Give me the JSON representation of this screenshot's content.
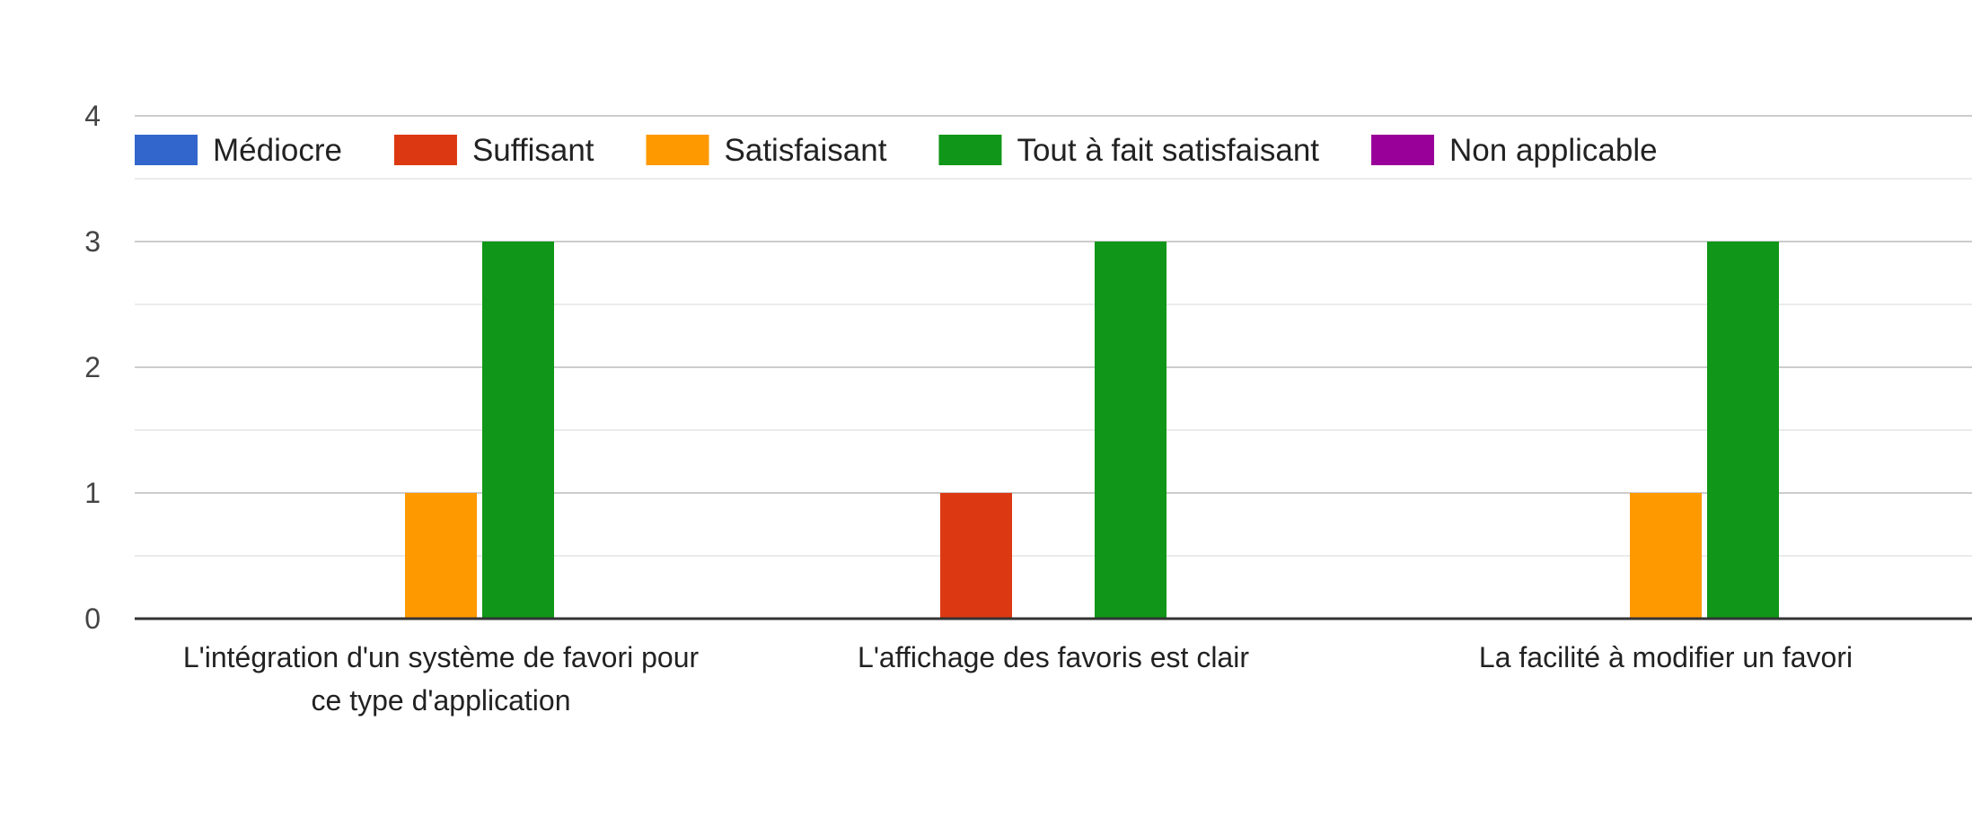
{
  "chart_data": {
    "type": "bar",
    "title": "",
    "xlabel": "",
    "ylabel": "",
    "ylim": [
      0,
      4
    ],
    "yticks": [
      0,
      1,
      2,
      3,
      4
    ],
    "grid": true,
    "legend_position": "top",
    "categories": [
      [
        "L'intégration d'un système de favori pour",
        "ce type d'application"
      ],
      [
        "L'affichage des favoris est clair"
      ],
      [
        "La facilité à modifier un favori"
      ]
    ],
    "series": [
      {
        "name": "Médiocre",
        "color": "#3366cc",
        "values": [
          0,
          0,
          0
        ]
      },
      {
        "name": "Suffisant",
        "color": "#dc3912",
        "values": [
          0,
          1,
          0
        ]
      },
      {
        "name": "Satisfaisant",
        "color": "#ff9900",
        "values": [
          1,
          0,
          1
        ]
      },
      {
        "name": "Tout à fait satisfaisant",
        "color": "#109618",
        "values": [
          3,
          3,
          3
        ]
      },
      {
        "name": "Non applicable",
        "color": "#990099",
        "values": [
          0,
          0,
          0
        ]
      }
    ]
  }
}
